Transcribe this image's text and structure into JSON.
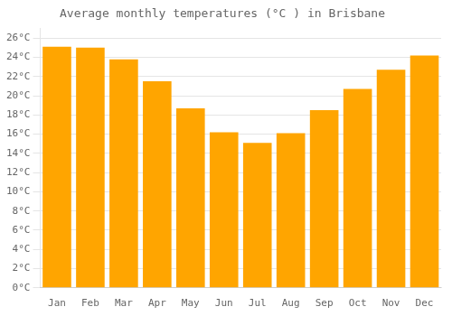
{
  "chart_data": {
    "type": "bar",
    "title": "Average monthly temperatures (°C ) in Brisbane",
    "categories": [
      "Jan",
      "Feb",
      "Mar",
      "Apr",
      "May",
      "Jun",
      "Jul",
      "Aug",
      "Sep",
      "Oct",
      "Nov",
      "Dec"
    ],
    "values": [
      25.1,
      25.0,
      23.8,
      21.5,
      18.7,
      16.2,
      15.1,
      16.1,
      18.5,
      20.7,
      22.7,
      24.2
    ],
    "color": "#FFA500",
    "ylim": [
      0,
      27
    ],
    "yticks": [
      {
        "value": 0,
        "label": "0°C"
      },
      {
        "value": 2,
        "label": "2°C"
      },
      {
        "value": 4,
        "label": "4°C"
      },
      {
        "value": 6,
        "label": "6°C"
      },
      {
        "value": 8,
        "label": "8°C"
      },
      {
        "value": 10,
        "label": "10°C"
      },
      {
        "value": 12,
        "label": "12°C"
      },
      {
        "value": 14,
        "label": "14°C"
      },
      {
        "value": 16,
        "label": "16°C"
      },
      {
        "value": 18,
        "label": "18°C"
      },
      {
        "value": 20,
        "label": "20°C"
      },
      {
        "value": 22,
        "label": "22°C"
      },
      {
        "value": 24,
        "label": "24°C"
      },
      {
        "value": 26,
        "label": "26°C"
      }
    ],
    "grid": true
  }
}
